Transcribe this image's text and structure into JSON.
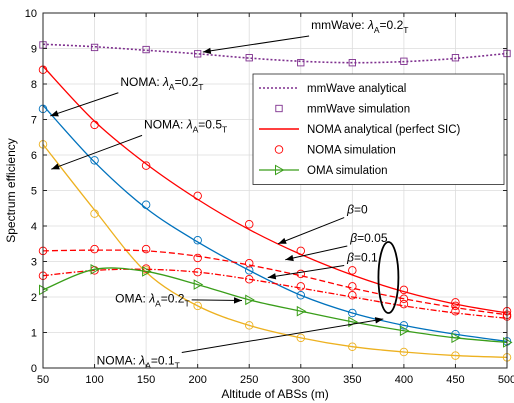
{
  "chart_data": {
    "type": "line",
    "xlabel": "Altitude of ABSs (m)",
    "ylabel": "Spectrum efficiency",
    "xlim": [
      50,
      500
    ],
    "ylim": [
      0,
      10
    ],
    "xticks": [
      50,
      100,
      150,
      200,
      250,
      300,
      350,
      400,
      450,
      500
    ],
    "yticks": [
      0,
      1,
      2,
      3,
      4,
      5,
      6,
      7,
      8,
      9,
      10
    ],
    "grid": true,
    "legend_position": "top-right",
    "legend": [
      {
        "label": "mmWave analytical",
        "style": "dotted",
        "color": "#7E2F8E"
      },
      {
        "label": "mmWave simulation",
        "style": "square",
        "color": "#7E2F8E"
      },
      {
        "label": "NOMA analytical (perfect SIC)",
        "style": "solid",
        "color": "#FF0000"
      },
      {
        "label": "NOMA simulation",
        "style": "circle",
        "color": "#FF0000"
      },
      {
        "label": "OMA simulation",
        "style": "triangle",
        "color": "#3A9E1A"
      }
    ],
    "series": [
      {
        "key": "mmwave_analytical",
        "color": "#7E2F8E",
        "dash": "2,2",
        "width": 1.6,
        "x": [
          50,
          100,
          150,
          200,
          250,
          300,
          350,
          400,
          450,
          500
        ],
        "y": [
          9.12,
          9.05,
          8.95,
          8.85,
          8.73,
          8.64,
          8.6,
          8.63,
          8.72,
          8.86
        ]
      },
      {
        "key": "mmwave_simulation",
        "color": "#7E2F8E",
        "marker": "square",
        "x": [
          50,
          100,
          150,
          200,
          250,
          300,
          350,
          400,
          450,
          500
        ],
        "y": [
          9.1,
          9.03,
          8.97,
          8.85,
          8.74,
          8.6,
          8.6,
          8.64,
          8.74,
          8.86
        ]
      },
      {
        "key": "noma_red_analytical",
        "color": "#FF0000",
        "dash": "",
        "width": 1.3,
        "x": [
          50,
          100,
          150,
          200,
          250,
          300,
          350,
          400,
          450,
          500
        ],
        "y": [
          8.5,
          6.95,
          5.75,
          4.75,
          3.9,
          3.2,
          2.62,
          2.15,
          1.8,
          1.55
        ]
      },
      {
        "key": "noma_red_simulation",
        "color": "#FF0000",
        "marker": "circle",
        "x": [
          50,
          100,
          150,
          200,
          250,
          300,
          350,
          400,
          450,
          500
        ],
        "y": [
          8.4,
          6.85,
          5.7,
          4.85,
          4.05,
          3.3,
          2.75,
          2.2,
          1.85,
          1.6
        ]
      },
      {
        "key": "noma_blue_analytical",
        "color": "#0072BD",
        "dash": "",
        "width": 1.3,
        "x": [
          50,
          100,
          150,
          200,
          250,
          300,
          350,
          400,
          450,
          500
        ],
        "y": [
          7.4,
          5.8,
          4.5,
          3.55,
          2.75,
          2.05,
          1.55,
          1.2,
          0.95,
          0.75
        ]
      },
      {
        "key": "noma_blue_simulation",
        "color": "#0072BD",
        "marker": "circle",
        "x": [
          50,
          100,
          150,
          200,
          250,
          300,
          350,
          400,
          450,
          500
        ],
        "y": [
          7.3,
          5.85,
          4.6,
          3.6,
          2.75,
          2.05,
          1.55,
          1.2,
          0.95,
          0.75
        ]
      },
      {
        "key": "noma_yellow_analytical",
        "color": "#EDB120",
        "dash": "",
        "width": 1.3,
        "x": [
          50,
          100,
          150,
          200,
          250,
          300,
          350,
          400,
          450,
          500
        ],
        "y": [
          6.3,
          4.45,
          2.7,
          1.75,
          1.2,
          0.85,
          0.6,
          0.45,
          0.35,
          0.3
        ]
      },
      {
        "key": "noma_yellow_simulation",
        "color": "#EDB120",
        "marker": "circle",
        "x": [
          50,
          100,
          150,
          200,
          250,
          300,
          350,
          400,
          450,
          500
        ],
        "y": [
          6.3,
          4.35,
          2.75,
          1.75,
          1.2,
          0.85,
          0.6,
          0.45,
          0.35,
          0.3
        ]
      },
      {
        "key": "beta_005_analytical",
        "color": "#FF0000",
        "dash": "6,3",
        "width": 1.3,
        "x": [
          50,
          100,
          150,
          200,
          250,
          300,
          350,
          400,
          450,
          500
        ],
        "y": [
          3.3,
          3.32,
          3.3,
          3.15,
          2.9,
          2.6,
          2.25,
          1.95,
          1.7,
          1.5
        ]
      },
      {
        "key": "beta_01_analytical",
        "color": "#FF0000",
        "dash": "6,2,1.5,2",
        "width": 1.3,
        "x": [
          50,
          100,
          150,
          200,
          250,
          300,
          350,
          400,
          450,
          500
        ],
        "y": [
          2.6,
          2.75,
          2.78,
          2.7,
          2.5,
          2.25,
          2.0,
          1.75,
          1.55,
          1.4
        ]
      },
      {
        "key": "beta_005_simulation",
        "color": "#FF0000",
        "marker": "circle",
        "x": [
          50,
          100,
          150,
          200,
          250,
          300,
          350,
          400,
          450,
          500
        ],
        "y": [
          3.3,
          3.35,
          3.35,
          3.1,
          2.95,
          2.65,
          2.3,
          1.95,
          1.75,
          1.5
        ]
      },
      {
        "key": "beta_01_simulation",
        "color": "#FF0000",
        "marker": "circle",
        "x": [
          50,
          100,
          150,
          200,
          250,
          300,
          350,
          400,
          450,
          500
        ],
        "y": [
          2.6,
          2.75,
          2.8,
          2.7,
          2.5,
          2.3,
          2.05,
          1.8,
          1.6,
          1.45
        ]
      },
      {
        "key": "oma_simulation",
        "color": "#3A9E1A",
        "dash": "",
        "width": 1.3,
        "marker": "triangle",
        "x": [
          50,
          100,
          150,
          200,
          250,
          300,
          350,
          400,
          450,
          500
        ],
        "y": [
          2.2,
          2.78,
          2.72,
          2.35,
          1.92,
          1.6,
          1.3,
          1.05,
          0.85,
          0.72
        ]
      }
    ],
    "annotations": [
      {
        "text": "mmWave: λA=0.2λT",
        "main": "mmWave: ",
        "sym": "λ",
        "sub1": "A",
        "mid": "=0.2",
        "sub2": "T",
        "lx": 310,
        "ly": 9.55,
        "ax": 205,
        "ay": 8.9
      },
      {
        "text": "NOMA: λA=0.2λT",
        "main": "NOMA: ",
        "sym": "λ",
        "sub1": "A",
        "mid": "=0.2",
        "sub2": "T",
        "lx": 125,
        "ly": 7.95,
        "ax": 57,
        "ay": 7.1
      },
      {
        "text": "NOMA: λA=0.5λT",
        "main": "NOMA: ",
        "sym": "λ",
        "sub1": "A",
        "mid": "=0.5",
        "sub2": "T",
        "lx": 148,
        "ly": 6.75,
        "ax": 58,
        "ay": 5.6
      },
      {
        "text": "β=0",
        "main": "",
        "sym": "β",
        "sub1": "",
        "mid": "=0",
        "sub2": "",
        "lx": 345,
        "ly": 4.35,
        "ax": 278,
        "ay": 3.5
      },
      {
        "text": "β=0.05",
        "main": "",
        "sym": "β",
        "sub1": "",
        "mid": "=0.05",
        "sub2": "",
        "lx": 348,
        "ly": 3.55,
        "ax": 285,
        "ay": 3.05
      },
      {
        "text": "β=0.1",
        "main": "",
        "sym": "β",
        "sub1": "",
        "mid": "=0.1",
        "sub2": "",
        "lx": 345,
        "ly": 3.0,
        "ax": 268,
        "ay": 2.55
      },
      {
        "text": "OMA: λA=0.2λT",
        "main": "OMA: ",
        "sym": "λ",
        "sub1": "A",
        "mid": "=0.2",
        "sub2": "T",
        "lx": 120,
        "ly": 1.85,
        "ax": 243,
        "ay": 1.9
      },
      {
        "text": "NOMA: λA=0.1λT",
        "main": "NOMA: ",
        "sym": "λ",
        "sub1": "A",
        "mid": "=0.1",
        "sub2": "T",
        "lx": 102,
        "ly": 0.1,
        "ax": 380,
        "ay": 1.38
      }
    ],
    "ellipse": {
      "cx": 385,
      "cy": 2.55,
      "rx": 10,
      "ry": 1.0
    }
  }
}
